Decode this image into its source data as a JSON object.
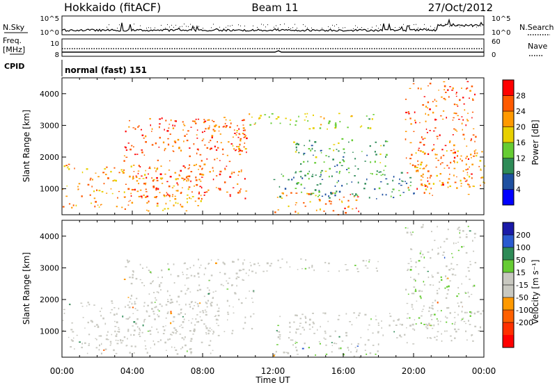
{
  "header": {
    "station": "Hokkaido (fitACF)",
    "beam": "Beam 11",
    "date": "27/Oct/2012"
  },
  "small_panels": {
    "nsky_label": "N.Sky",
    "nsearch_label": "N.Search",
    "noise_ticks": [
      "10^5",
      "10^0"
    ],
    "freq_label_1": "Freq.",
    "freq_label_2": "[MHz]",
    "freq_ticks": [
      "10",
      "8"
    ],
    "nave_label": "Nave",
    "nave_ticks": [
      "60",
      "0"
    ],
    "cpid_label": "CPID",
    "cpid_value": "normal (fast) 151"
  },
  "colors": {
    "power": [
      "#0000ff",
      "#1e50a0",
      "#2e8b57",
      "#66cc33",
      "#e8d000",
      "#ff9900",
      "#ff5a00",
      "#ff0000"
    ],
    "velocity": [
      "#1a1aa8",
      "#2a5ad0",
      "#2e8b57",
      "#66cc33",
      "#c8c8c0",
      "#c8c8c0",
      "#ff9900",
      "#ff6000",
      "#ff3000",
      "#ff0000"
    ]
  },
  "chart_data": [
    {
      "type": "heatmap",
      "title": "",
      "xlabel": "Time UT",
      "ylabel": "Slant Range [km]",
      "xlim": [
        0,
        24
      ],
      "ylim": [
        180,
        4500
      ],
      "x_ticks": [
        "00:00",
        "04:00",
        "08:00",
        "12:00",
        "16:00",
        "20:00",
        "00:00"
      ],
      "y_ticks": [
        "1000",
        "2000",
        "3000",
        "4000"
      ],
      "colorbar_label": "Power [dB]",
      "colorbar_ticks": [
        "4",
        "8",
        "12",
        "16",
        "20",
        "24",
        "28"
      ],
      "colorbar_range": [
        0,
        32
      ],
      "features": [
        {
          "t": [
            0,
            8
          ],
          "range": [
            300,
            1800
          ],
          "value": 22
        },
        {
          "t": [
            3.5,
            10.5
          ],
          "range": [
            700,
            3300
          ],
          "value": 26
        },
        {
          "t": [
            6,
            10.5
          ],
          "range": [
            2200,
            3200
          ],
          "value": 24
        },
        {
          "t": [
            10.5,
            18
          ],
          "range": [
            2900,
            3400
          ],
          "value": 16
        },
        {
          "t": [
            12,
            17
          ],
          "range": [
            200,
            900
          ],
          "value": 24
        },
        {
          "t": [
            12,
            20
          ],
          "range": [
            700,
            1600
          ],
          "value": 10
        },
        {
          "t": [
            13,
            18.5
          ],
          "range": [
            1400,
            2600
          ],
          "value": 12
        },
        {
          "t": [
            19.5,
            23.5
          ],
          "range": [
            1000,
            4400
          ],
          "value": 26
        },
        {
          "t": [
            20,
            24
          ],
          "range": [
            800,
            2300
          ],
          "value": 22
        }
      ]
    },
    {
      "type": "heatmap",
      "title": "",
      "xlabel": "Time UT",
      "ylabel": "Slant Range [km]",
      "xlim": [
        0,
        24
      ],
      "ylim": [
        180,
        4500
      ],
      "x_ticks": [
        "00:00",
        "04:00",
        "08:00",
        "12:00",
        "16:00",
        "20:00",
        "00:00"
      ],
      "y_ticks": [
        "1000",
        "2000",
        "3000",
        "4000"
      ],
      "colorbar_label": "Velocity [m s⁻¹]",
      "colorbar_ticks": [
        "200",
        "100",
        "50",
        "15",
        "-15",
        "-50",
        "-100",
        "-200"
      ],
      "colorbar_range": [
        -250,
        250
      ],
      "features": [
        {
          "t": [
            0,
            9
          ],
          "range": [
            300,
            2000
          ],
          "value": 0
        },
        {
          "t": [
            3.5,
            11
          ],
          "range": [
            900,
            3300
          ],
          "value": 0
        },
        {
          "t": [
            10.5,
            18
          ],
          "range": [
            2900,
            3300
          ],
          "value": 0
        },
        {
          "t": [
            12,
            20
          ],
          "range": [
            600,
            1600
          ],
          "value": 0
        },
        {
          "t": [
            12,
            18
          ],
          "range": [
            200,
            700
          ],
          "value": 40
        },
        {
          "t": [
            19.5,
            23.5
          ],
          "range": [
            1200,
            4400
          ],
          "value": 40
        },
        {
          "t": [
            20,
            24
          ],
          "range": [
            700,
            1800
          ],
          "value": 0
        }
      ]
    }
  ]
}
